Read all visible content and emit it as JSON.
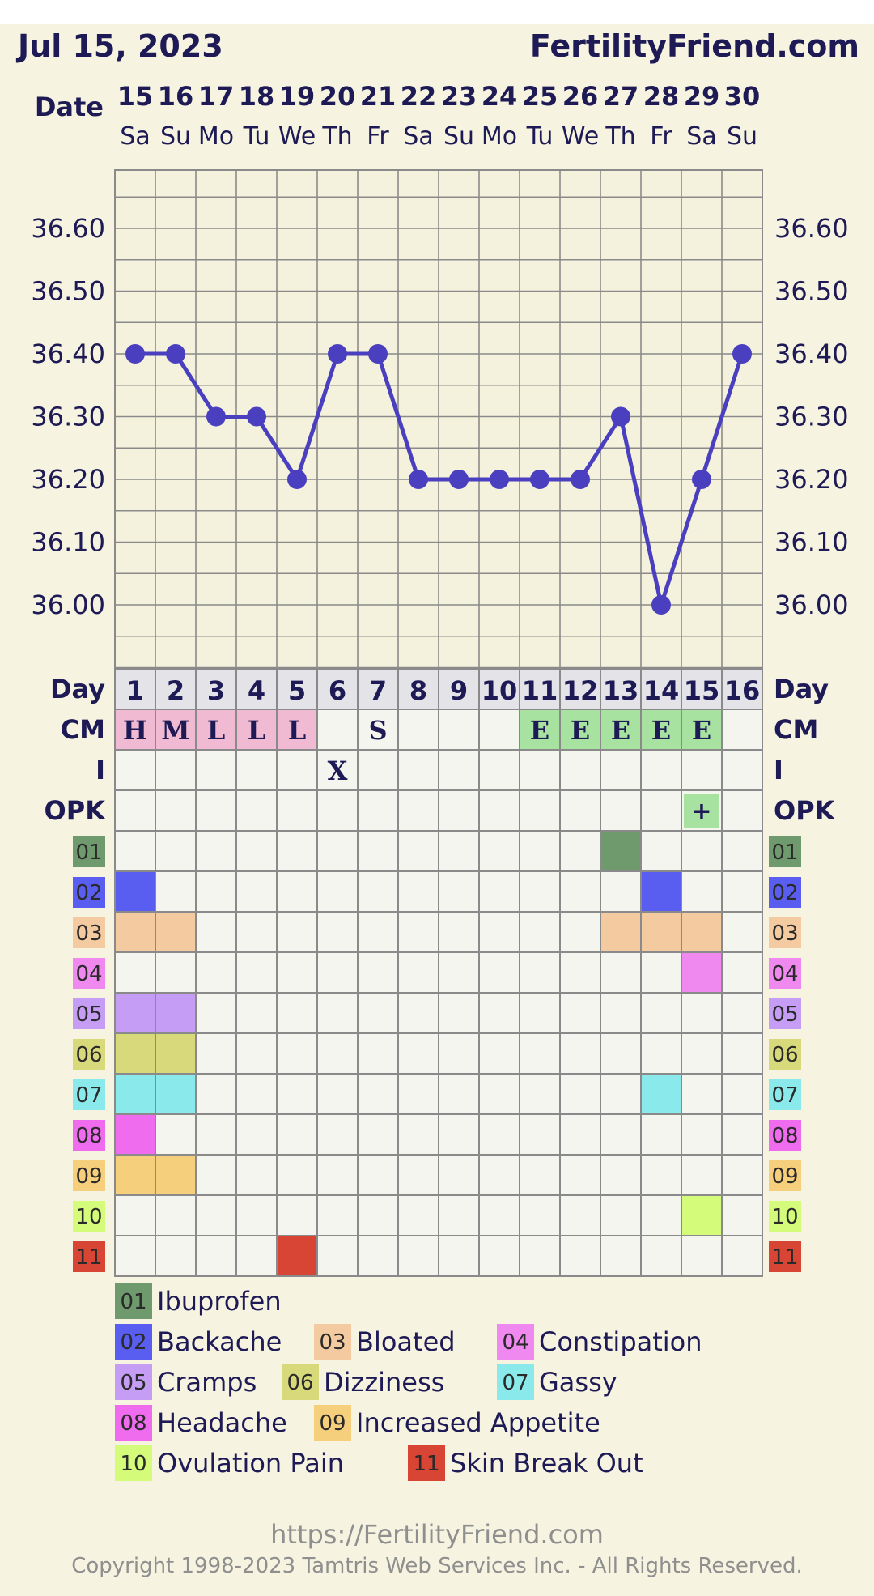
{
  "header": {
    "date_text": "Jul 15, 2023",
    "brand": "FertilityFriend.com",
    "date_label": "Date",
    "day_label": "Day"
  },
  "chart_data": {
    "type": "line",
    "dates": [
      "15",
      "16",
      "17",
      "18",
      "19",
      "20",
      "21",
      "22",
      "23",
      "24",
      "25",
      "26",
      "27",
      "28",
      "29",
      "30"
    ],
    "weekdays": [
      "Sa",
      "Su",
      "Mo",
      "Tu",
      "We",
      "Th",
      "Fr",
      "Sa",
      "Su",
      "Mo",
      "Tu",
      "We",
      "Th",
      "Fr",
      "Sa",
      "Su"
    ],
    "cycle_days": [
      "1",
      "2",
      "3",
      "4",
      "5",
      "6",
      "7",
      "8",
      "9",
      "10",
      "11",
      "12",
      "13",
      "14",
      "15",
      "16"
    ],
    "series": [
      {
        "values": [
          36.4,
          36.4,
          36.3,
          36.3,
          36.2,
          36.4,
          36.4,
          36.2,
          36.2,
          36.2,
          36.2,
          36.2,
          36.3,
          36.0,
          36.2,
          36.4
        ],
        "color": "#4a3fbf"
      }
    ],
    "ylim": [
      35.95,
      36.64
    ],
    "yticks": [
      "36.60",
      "36.50",
      "36.40",
      "36.30",
      "36.20",
      "36.10",
      "36.00"
    ],
    "grid": true
  },
  "rows": {
    "cm": {
      "label": "CM",
      "values": [
        "H",
        "M",
        "L",
        "L",
        "L",
        "",
        "S",
        "",
        "",
        "",
        "E",
        "E",
        "E",
        "E",
        "E",
        ""
      ]
    },
    "intercourse": {
      "label": "I",
      "values": [
        "",
        "",
        "",
        "",
        "",
        "X",
        "",
        "",
        "",
        "",
        "",
        "",
        "",
        "",
        "",
        ""
      ]
    },
    "opk": {
      "label": "OPK",
      "values": [
        "",
        "",
        "",
        "",
        "",
        "",
        "",
        "",
        "",
        "",
        "",
        "",
        "",
        "",
        "+",
        ""
      ]
    },
    "symptoms": [
      {
        "code": "01",
        "name": "Ibuprofen",
        "color": "#6e9a6e",
        "days": [
          13
        ]
      },
      {
        "code": "02",
        "name": "Backache",
        "color": "#5a5ef0",
        "days": [
          1,
          14
        ]
      },
      {
        "code": "03",
        "name": "Bloated",
        "color": "#f4cba0",
        "days": [
          1,
          2,
          13,
          14,
          15
        ]
      },
      {
        "code": "04",
        "name": "Constipation",
        "color": "#ef88ef",
        "days": [
          15
        ]
      },
      {
        "code": "05",
        "name": "Cramps",
        "color": "#c69df5",
        "days": [
          1,
          2
        ]
      },
      {
        "code": "06",
        "name": "Dizziness",
        "color": "#d8d97a",
        "days": [
          1,
          2
        ]
      },
      {
        "code": "07",
        "name": "Gassy",
        "color": "#8ae9ea",
        "days": [
          1,
          2,
          14
        ]
      },
      {
        "code": "08",
        "name": "Headache",
        "color": "#ef6cef",
        "days": [
          1
        ]
      },
      {
        "code": "09",
        "name": "Increased Appetite",
        "color": "#f5cf7b",
        "days": [
          1,
          2
        ]
      },
      {
        "code": "10",
        "name": "Ovulation Pain",
        "color": "#d5fb7b",
        "days": [
          15
        ]
      },
      {
        "code": "11",
        "name": "Skin Break Out",
        "color": "#d84535",
        "days": [
          5
        ]
      }
    ]
  },
  "colors": {
    "background": "#f6f4e0",
    "cm_fertile": "#f0bad3",
    "cm_egg_white": "#a7e2a0",
    "opk_positive": "#a7e2a0",
    "line": "#4a3fbf",
    "text": "#1e1a55"
  },
  "footer": {
    "url": "https://FertilityFriend.com",
    "copyright": "Copyright 1998-2023 Tamtris Web Services Inc. - All Rights Reserved."
  }
}
